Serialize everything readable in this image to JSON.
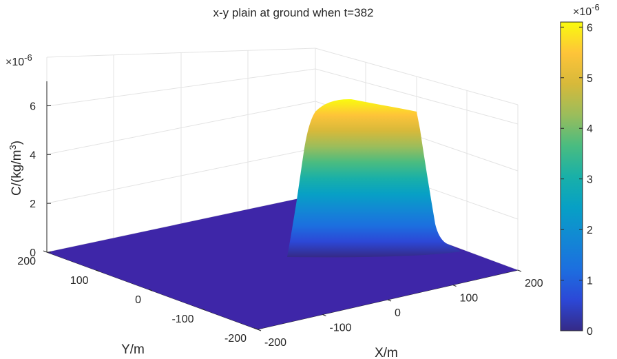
{
  "chart_data": {
    "type": "surface",
    "title": "x-y plain at ground when t=382",
    "xlabel": "X/m",
    "ylabel": "Y/m",
    "zlabel_main": "C/(kg/m",
    "zlabel_sup": "3",
    "zlabel_tail": ")",
    "exponent_base": "×10",
    "exponent_power": "-6",
    "x_ticks": [
      "-200",
      "-100",
      "0",
      "100",
      "200"
    ],
    "y_ticks": [
      "200",
      "100",
      "0",
      "-100",
      "-200"
    ],
    "z_ticks": [
      "0",
      "2",
      "4",
      "6"
    ],
    "colorbar_ticks": [
      "0",
      "1",
      "2",
      "3",
      "4",
      "5",
      "6"
    ],
    "xlim": [
      -200,
      200
    ],
    "ylim": [
      -200,
      200
    ],
    "zlim": [
      0,
      7e-06
    ],
    "clim": [
      0,
      6.1e-06
    ],
    "colormap": "parula",
    "grid": true,
    "plume": {
      "peak": 6.1e-06,
      "x_start": 0,
      "x_end": 200,
      "y_center": 0,
      "y_halfwidth": 25
    }
  }
}
